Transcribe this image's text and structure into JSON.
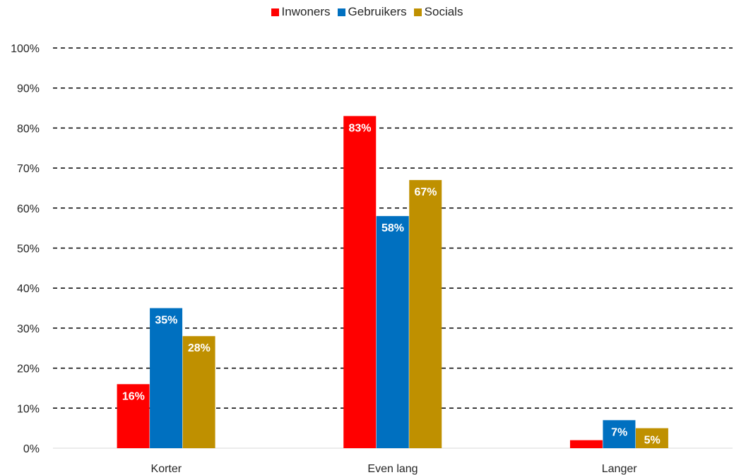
{
  "chart_data": {
    "type": "bar",
    "categories": [
      "Korter",
      "Even lang",
      "Langer"
    ],
    "series": [
      {
        "name": "Inwoners",
        "color": "#ff0000",
        "values": [
          16,
          83,
          2
        ],
        "labels": [
          "16%",
          "83%",
          ""
        ]
      },
      {
        "name": "Gebruikers",
        "color": "#0070c0",
        "values": [
          35,
          58,
          7
        ],
        "labels": [
          "35%",
          "58%",
          "7%"
        ]
      },
      {
        "name": "Socials",
        "color": "#bf9000",
        "values": [
          28,
          67,
          5
        ],
        "labels": [
          "28%",
          "67%",
          "5%"
        ]
      }
    ],
    "ylim": [
      0,
      100
    ],
    "yticks": [
      "0%",
      "10%",
      "20%",
      "30%",
      "40%",
      "50%",
      "60%",
      "70%",
      "80%",
      "90%",
      "100%"
    ],
    "grid": "dashed",
    "legend_position": "top"
  }
}
